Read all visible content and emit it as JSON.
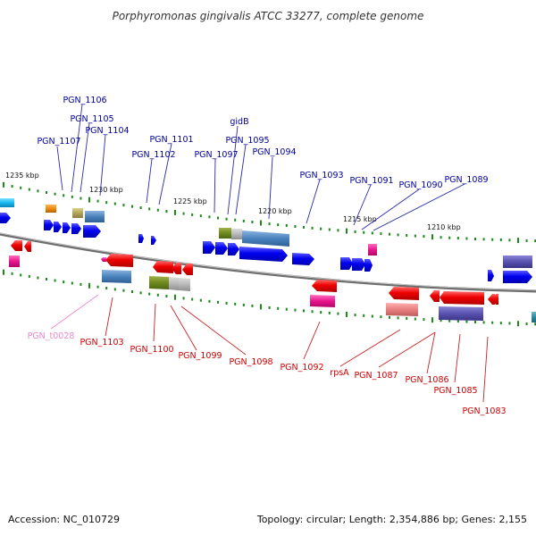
{
  "title": "Porphyromonas gingivalis ATCC 33277, complete genome",
  "footer": {
    "accession": "Accession: NC_010729",
    "summary": "Topology: circular; Length: 2,354,886 bp; Genes: 2,155"
  },
  "colors": {
    "forward_label": "#00009a",
    "reverse_label": "#cc0000",
    "trna_label": "#ee88cc",
    "backbone": "#707070",
    "tick": "#1a8a1a",
    "forward_gene": "#0000ee",
    "reverse_gene": "#ee0000"
  },
  "scale_labels": {
    "k1235": "1235 kbp",
    "k1230": "1230 kbp",
    "k1225": "1225 kbp",
    "k1220": "1220 kbp",
    "k1215": "1215 kbp",
    "k1210": "1210 kbp"
  },
  "forward_genes": {
    "PGN_1106": "PGN_1106",
    "PGN_1105": "PGN_1105",
    "PGN_1104": "PGN_1104",
    "PGN_1107": "PGN_1107",
    "PGN_1101": "PGN_1101",
    "PGN_1102": "PGN_1102",
    "gidB": "gidB",
    "PGN_1095": "PGN_1095",
    "PGN_1097": "PGN_1097",
    "PGN_1094": "PGN_1094",
    "PGN_1093": "PGN_1093",
    "PGN_1091": "PGN_1091",
    "PGN_1090": "PGN_1090",
    "PGN_1089": "PGN_1089"
  },
  "reverse_genes": {
    "PGN_t0028": "PGN_t0028",
    "PGN_1103": "PGN_1103",
    "PGN_1100": "PGN_1100",
    "PGN_1099": "PGN_1099",
    "PGN_1098": "PGN_1098",
    "PGN_1092": "PGN_1092",
    "rpsA": "rpsA",
    "PGN_1087": "PGN_1087",
    "PGN_1086": "PGN_1086",
    "PGN_1085": "PGN_1085",
    "PGN_1083": "PGN_1083"
  }
}
